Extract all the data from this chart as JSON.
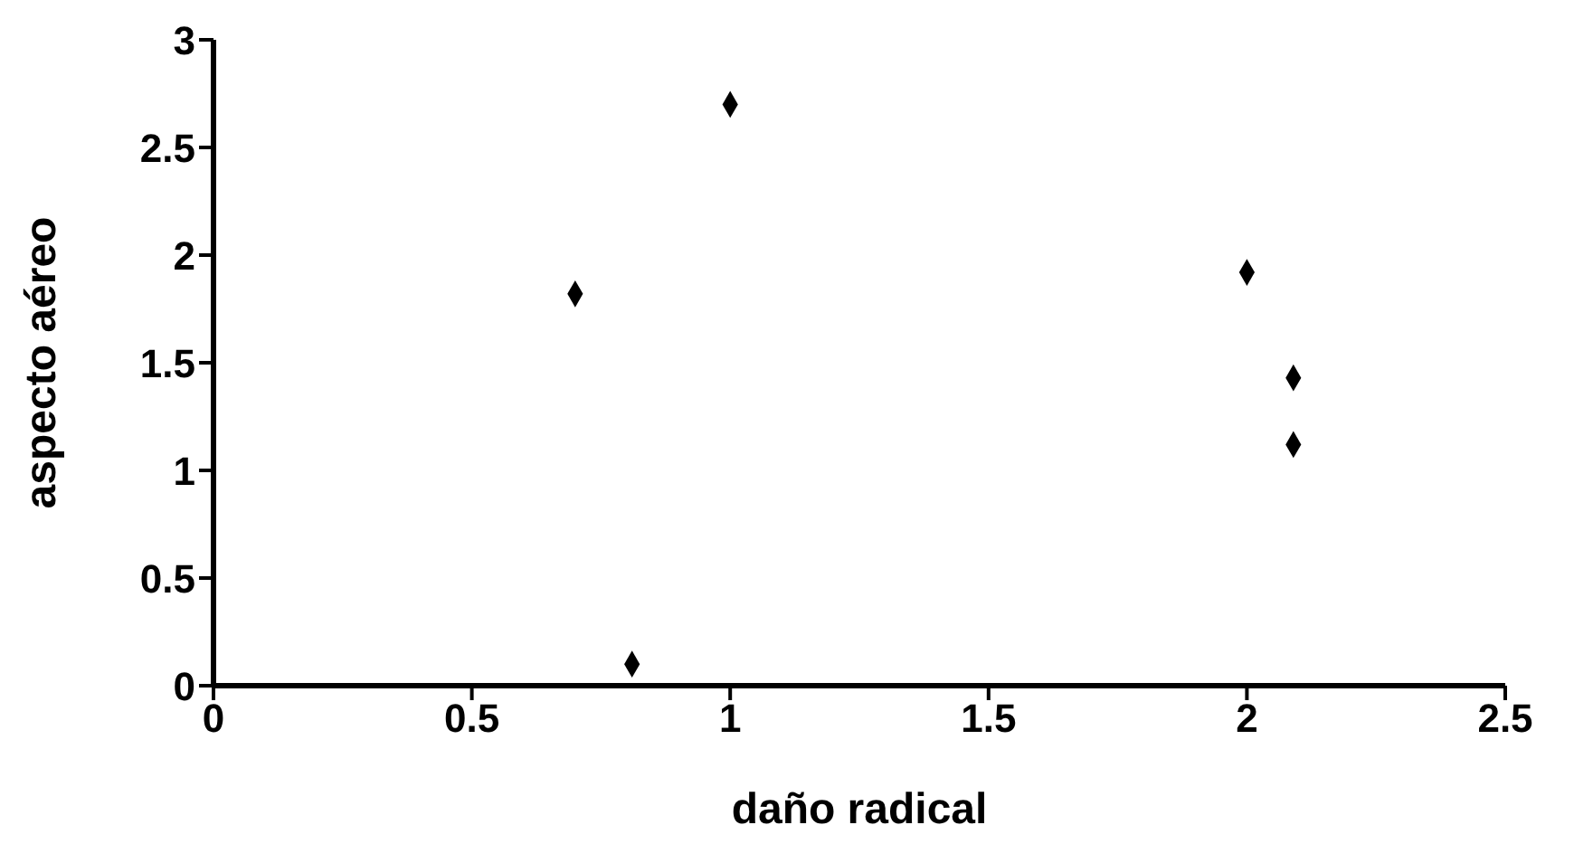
{
  "chart_data": {
    "type": "scatter",
    "xlabel": "daño radical",
    "ylabel": "aspecto aéreo",
    "x": [
      0.7,
      0.81,
      1.0,
      2.0,
      2.09,
      2.09
    ],
    "values": [
      1.82,
      0.1,
      2.7,
      1.92,
      1.43,
      1.12
    ],
    "color": "#000000",
    "marker": "diamond",
    "xlim": [
      0,
      2.5
    ],
    "xticks": [
      0,
      0.5,
      1,
      1.5,
      2,
      2.5
    ],
    "ylim": [
      0,
      3
    ],
    "yticks": [
      0,
      0.5,
      1,
      1.5,
      2,
      2.5,
      3
    ],
    "grid": false,
    "legend": false
  }
}
